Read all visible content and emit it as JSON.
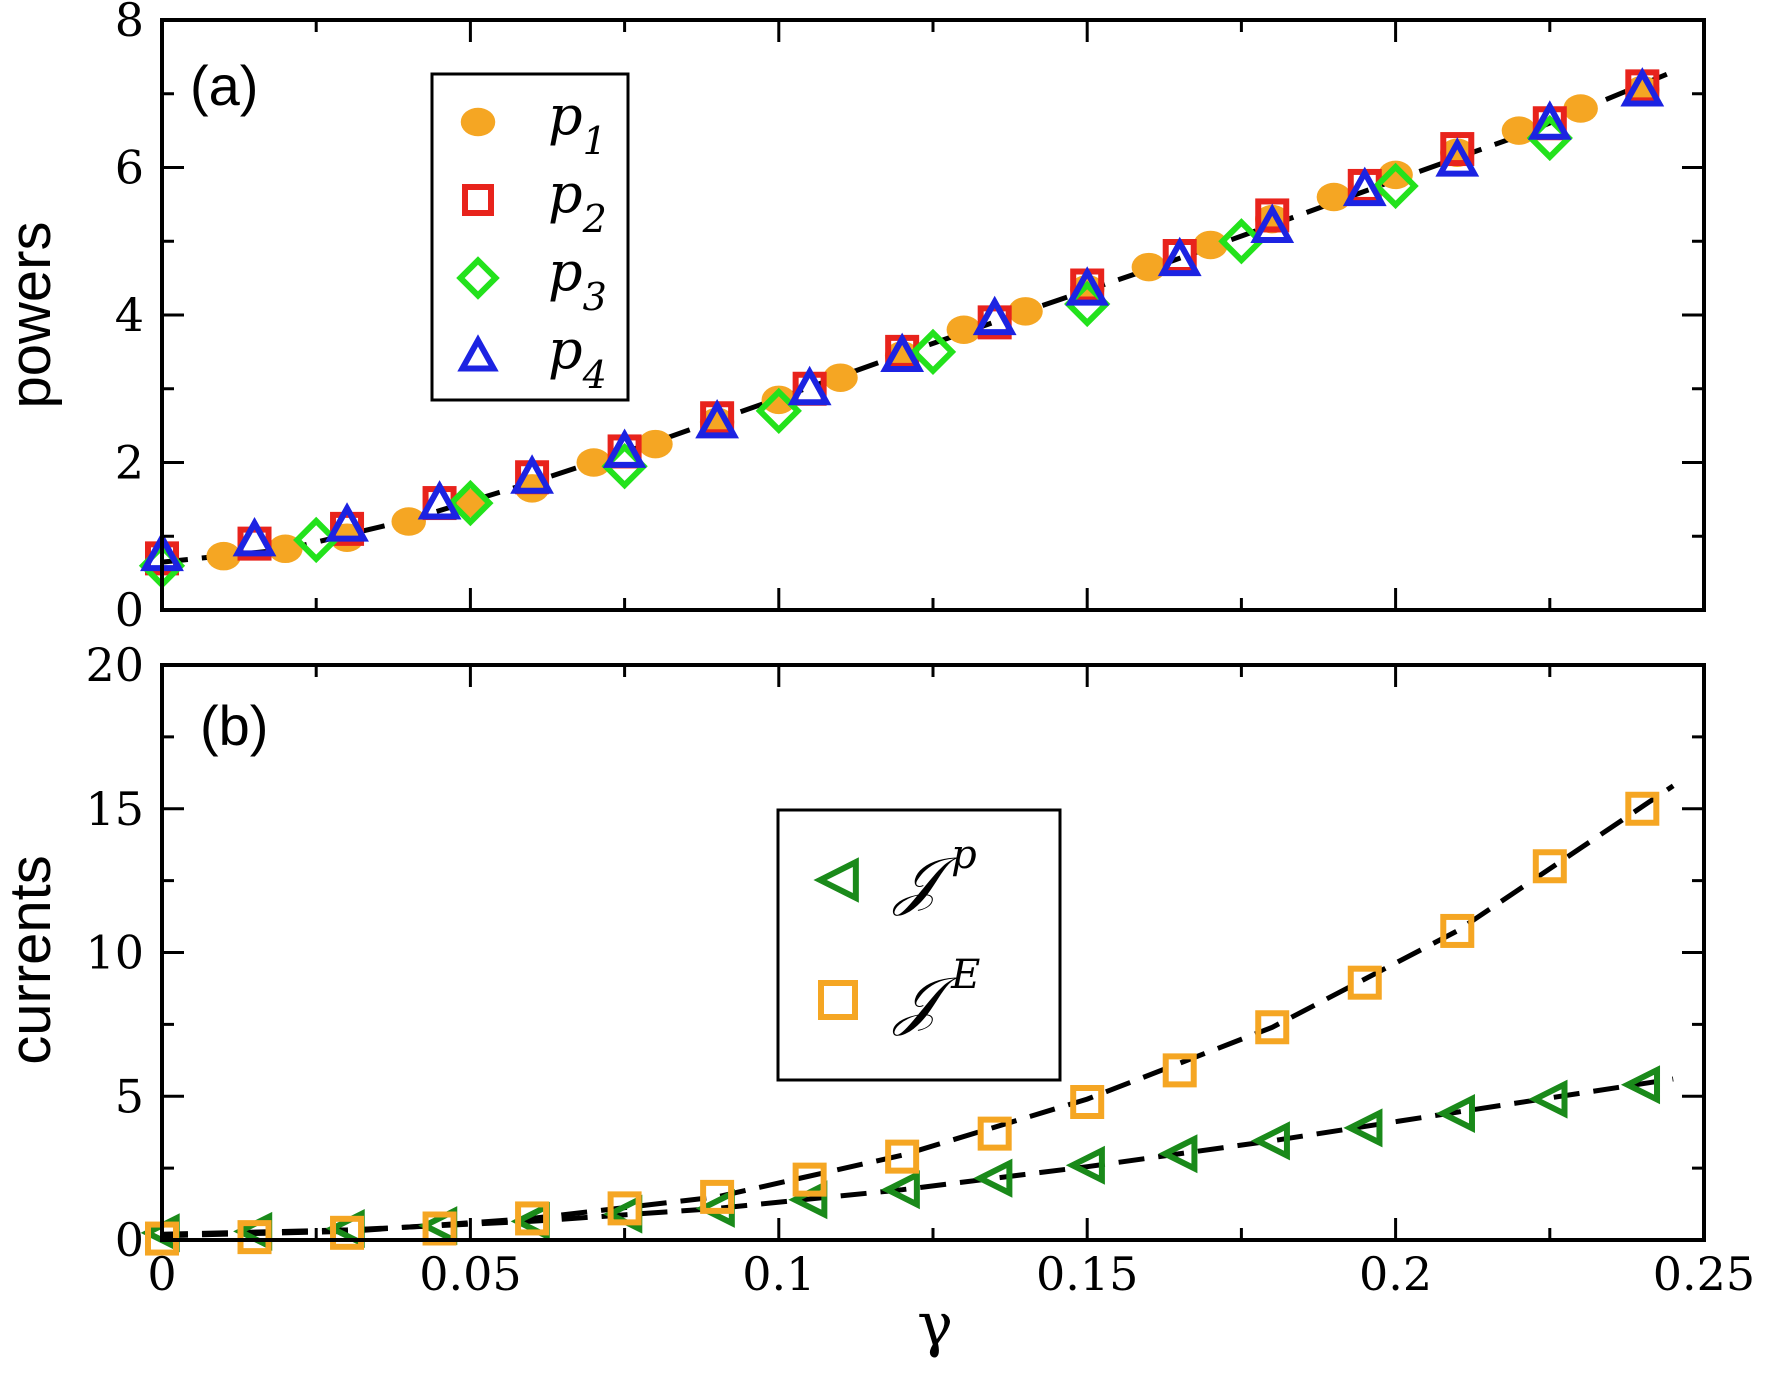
{
  "chart_data": [
    {
      "type": "scatter",
      "panel_label": "(a)",
      "ylabel": "powers",
      "xlabel": "",
      "xlim": [
        0,
        0.25
      ],
      "ylim": [
        0,
        8
      ],
      "x_ticks": [
        0,
        0.05,
        0.1,
        0.15,
        0.2,
        0.25
      ],
      "y_ticks": [
        "0",
        "2",
        "4",
        "6",
        "8"
      ],
      "y_tick_values": [
        0,
        2,
        4,
        6,
        8
      ],
      "legend": {
        "placement": "top-left"
      },
      "series": [
        {
          "name": "p",
          "sub": "1",
          "marker": "circle-filled",
          "color": "#f5a623",
          "x": [
            0.01,
            0.02,
            0.03,
            0.04,
            0.05,
            0.06,
            0.07,
            0.08,
            0.09,
            0.1,
            0.11,
            0.12,
            0.13,
            0.14,
            0.15,
            0.16,
            0.17,
            0.18,
            0.19,
            0.2,
            0.21,
            0.22,
            0.23,
            0.24
          ],
          "y": [
            0.73,
            0.83,
            0.98,
            1.2,
            1.45,
            1.65,
            2.0,
            2.25,
            2.55,
            2.85,
            3.15,
            3.45,
            3.8,
            4.05,
            4.35,
            4.65,
            4.95,
            5.3,
            5.6,
            5.9,
            6.2,
            6.5,
            6.8,
            7.05
          ]
        },
        {
          "name": "p",
          "sub": "2",
          "marker": "square-open",
          "color": "#e8231c",
          "x": [
            0,
            0.015,
            0.03,
            0.045,
            0.06,
            0.075,
            0.09,
            0.105,
            0.12,
            0.135,
            0.15,
            0.165,
            0.18,
            0.195,
            0.21,
            0.225,
            0.24
          ],
          "y": [
            0.7,
            0.9,
            1.1,
            1.45,
            1.8,
            2.15,
            2.6,
            3.0,
            3.5,
            3.9,
            4.4,
            4.8,
            5.35,
            5.75,
            6.25,
            6.6,
            7.1
          ]
        },
        {
          "name": "p",
          "sub": "3",
          "marker": "diamond-open",
          "color": "#23e21c",
          "x": [
            0,
            0.025,
            0.05,
            0.075,
            0.1,
            0.125,
            0.15,
            0.175,
            0.2,
            0.225
          ],
          "y": [
            0.6,
            0.95,
            1.45,
            1.95,
            2.7,
            3.5,
            4.15,
            5.0,
            5.75,
            6.4
          ]
        },
        {
          "name": "p",
          "sub": "4",
          "marker": "triangle-up-open",
          "color": "#1c23e2",
          "x": [
            0,
            0.015,
            0.03,
            0.045,
            0.06,
            0.075,
            0.09,
            0.105,
            0.12,
            0.135,
            0.15,
            0.165,
            0.18,
            0.195,
            0.21,
            0.225,
            0.24
          ],
          "y": [
            0.75,
            0.95,
            1.15,
            1.45,
            1.8,
            2.15,
            2.55,
            3.0,
            3.45,
            3.95,
            4.35,
            4.75,
            5.2,
            5.7,
            6.1,
            6.6,
            7.05
          ]
        }
      ],
      "fit_lines": [
        {
          "style": "dashed",
          "color": "#000000",
          "x": [
            0,
            0.02,
            0.04,
            0.06,
            0.08,
            0.1,
            0.12,
            0.14,
            0.16,
            0.18,
            0.2,
            0.22,
            0.245
          ],
          "y": [
            0.65,
            0.82,
            1.22,
            1.73,
            2.28,
            2.87,
            3.47,
            4.05,
            4.62,
            5.22,
            5.83,
            6.43,
            7.3
          ]
        }
      ]
    },
    {
      "type": "scatter",
      "panel_label": "(b)",
      "ylabel": "currents",
      "xlabel": "γ",
      "xlim": [
        0,
        0.25
      ],
      "ylim": [
        0,
        20
      ],
      "x_ticks": [
        "0",
        "0.05",
        "0.1",
        "0.15",
        "0.2",
        "0.25"
      ],
      "x_tick_values": [
        0,
        0.05,
        0.1,
        0.15,
        0.2,
        0.25
      ],
      "y_ticks": [
        "0",
        "5",
        "10",
        "15",
        "20"
      ],
      "y_tick_values": [
        0,
        5,
        10,
        15,
        20
      ],
      "legend": {
        "placement": "center"
      },
      "series": [
        {
          "name": "𝒥",
          "sup": "p",
          "marker": "triangle-left-open",
          "color": "#1a8a1a",
          "x": [
            0,
            0.015,
            0.03,
            0.045,
            0.06,
            0.075,
            0.09,
            0.105,
            0.12,
            0.135,
            0.15,
            0.165,
            0.18,
            0.195,
            0.21,
            0.225,
            0.24
          ],
          "y": [
            0.25,
            0.3,
            0.4,
            0.5,
            0.65,
            0.9,
            1.1,
            1.4,
            1.75,
            2.15,
            2.6,
            3.0,
            3.45,
            3.9,
            4.4,
            4.9,
            5.4
          ]
        },
        {
          "name": "𝒥",
          "sup": "E",
          "marker": "square-open",
          "color": "#f5a623",
          "x": [
            0,
            0.015,
            0.03,
            0.045,
            0.06,
            0.075,
            0.09,
            0.105,
            0.12,
            0.135,
            0.15,
            0.165,
            0.18,
            0.195,
            0.21,
            0.225,
            0.24
          ],
          "y": [
            0.05,
            0.1,
            0.25,
            0.4,
            0.75,
            1.1,
            1.5,
            2.1,
            2.9,
            3.7,
            4.8,
            5.9,
            7.4,
            8.95,
            10.75,
            13.0,
            15.0
          ]
        }
      ],
      "fit_lines": [
        {
          "style": "dashed",
          "color": "#000000",
          "x": [
            0,
            0.03,
            0.06,
            0.09,
            0.12,
            0.15,
            0.18,
            0.21,
            0.245
          ],
          "y": [
            0.2,
            0.35,
            0.65,
            1.1,
            1.75,
            2.55,
            3.45,
            4.45,
            5.6
          ]
        },
        {
          "style": "dashed",
          "color": "#000000",
          "x": [
            0,
            0.03,
            0.06,
            0.09,
            0.12,
            0.15,
            0.18,
            0.21,
            0.245
          ],
          "y": [
            0.15,
            0.3,
            0.75,
            1.5,
            2.95,
            4.9,
            7.4,
            10.75,
            15.8
          ]
        }
      ]
    }
  ]
}
